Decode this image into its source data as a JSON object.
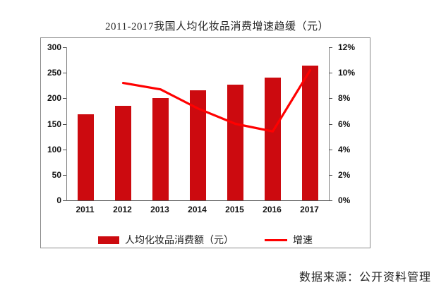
{
  "title": "2011-2017我国人均化妆品消费增速趋缓（元）",
  "source": "数据来源：公开资料管理",
  "colors": {
    "bar": "#cc0a0f",
    "line": "#ff0000",
    "axis": "#808080",
    "text": "#141414"
  },
  "legend": {
    "bar_label": "人均化妆品消费额（元）",
    "line_label": "增速"
  },
  "chart_data": {
    "type": "bar",
    "subtype": "bar+line combo, dual axis",
    "categories": [
      "2011",
      "2012",
      "2013",
      "2014",
      "2015",
      "2016",
      "2017"
    ],
    "series": [
      {
        "name": "人均化妆品消费额（元）",
        "type": "bar",
        "axis": "left",
        "color": "#cc0a0f",
        "values": [
          169,
          185,
          200,
          215,
          227,
          240,
          264
        ]
      },
      {
        "name": "增速",
        "type": "line",
        "axis": "right",
        "color": "#ff0000",
        "unit": "%",
        "values": [
          null,
          9.2,
          8.7,
          7.2,
          6.0,
          5.4,
          10.2
        ]
      }
    ],
    "left_axis": {
      "min": 0,
      "max": 300,
      "step": 50,
      "ticks": [
        "0",
        "50",
        "100",
        "150",
        "200",
        "250",
        "300"
      ]
    },
    "right_axis": {
      "min": 0,
      "max": 12,
      "step": 2,
      "ticks": [
        "0%",
        "2%",
        "4%",
        "6%",
        "8%",
        "10%",
        "12%"
      ]
    },
    "grid": false,
    "legend_position": "bottom"
  }
}
